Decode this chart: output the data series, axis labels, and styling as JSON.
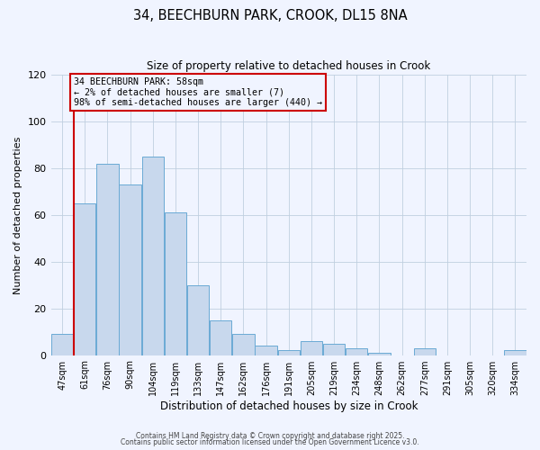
{
  "title": "34, BEECHBURN PARK, CROOK, DL15 8NA",
  "subtitle": "Size of property relative to detached houses in Crook",
  "xlabel": "Distribution of detached houses by size in Crook",
  "ylabel": "Number of detached properties",
  "categories": [
    "47sqm",
    "61sqm",
    "76sqm",
    "90sqm",
    "104sqm",
    "119sqm",
    "133sqm",
    "147sqm",
    "162sqm",
    "176sqm",
    "191sqm",
    "205sqm",
    "219sqm",
    "234sqm",
    "248sqm",
    "262sqm",
    "277sqm",
    "291sqm",
    "305sqm",
    "320sqm",
    "334sqm"
  ],
  "values": [
    9,
    65,
    82,
    73,
    85,
    61,
    30,
    15,
    9,
    4,
    2,
    6,
    5,
    3,
    1,
    0,
    3,
    0,
    0,
    0,
    2
  ],
  "bar_color": "#c8d8ed",
  "bar_edge_color": "#6aaad4",
  "ylim": [
    0,
    120
  ],
  "yticks": [
    0,
    20,
    40,
    60,
    80,
    100,
    120
  ],
  "property_line_color": "#cc0000",
  "annotation_box_text": "34 BEECHBURN PARK: 58sqm\n← 2% of detached houses are smaller (7)\n98% of semi-detached houses are larger (440) →",
  "background_color": "#f0f4ff",
  "grid_color": "#c0cfdf",
  "footer_line1": "Contains HM Land Registry data © Crown copyright and database right 2025.",
  "footer_line2": "Contains public sector information licensed under the Open Government Licence v3.0."
}
